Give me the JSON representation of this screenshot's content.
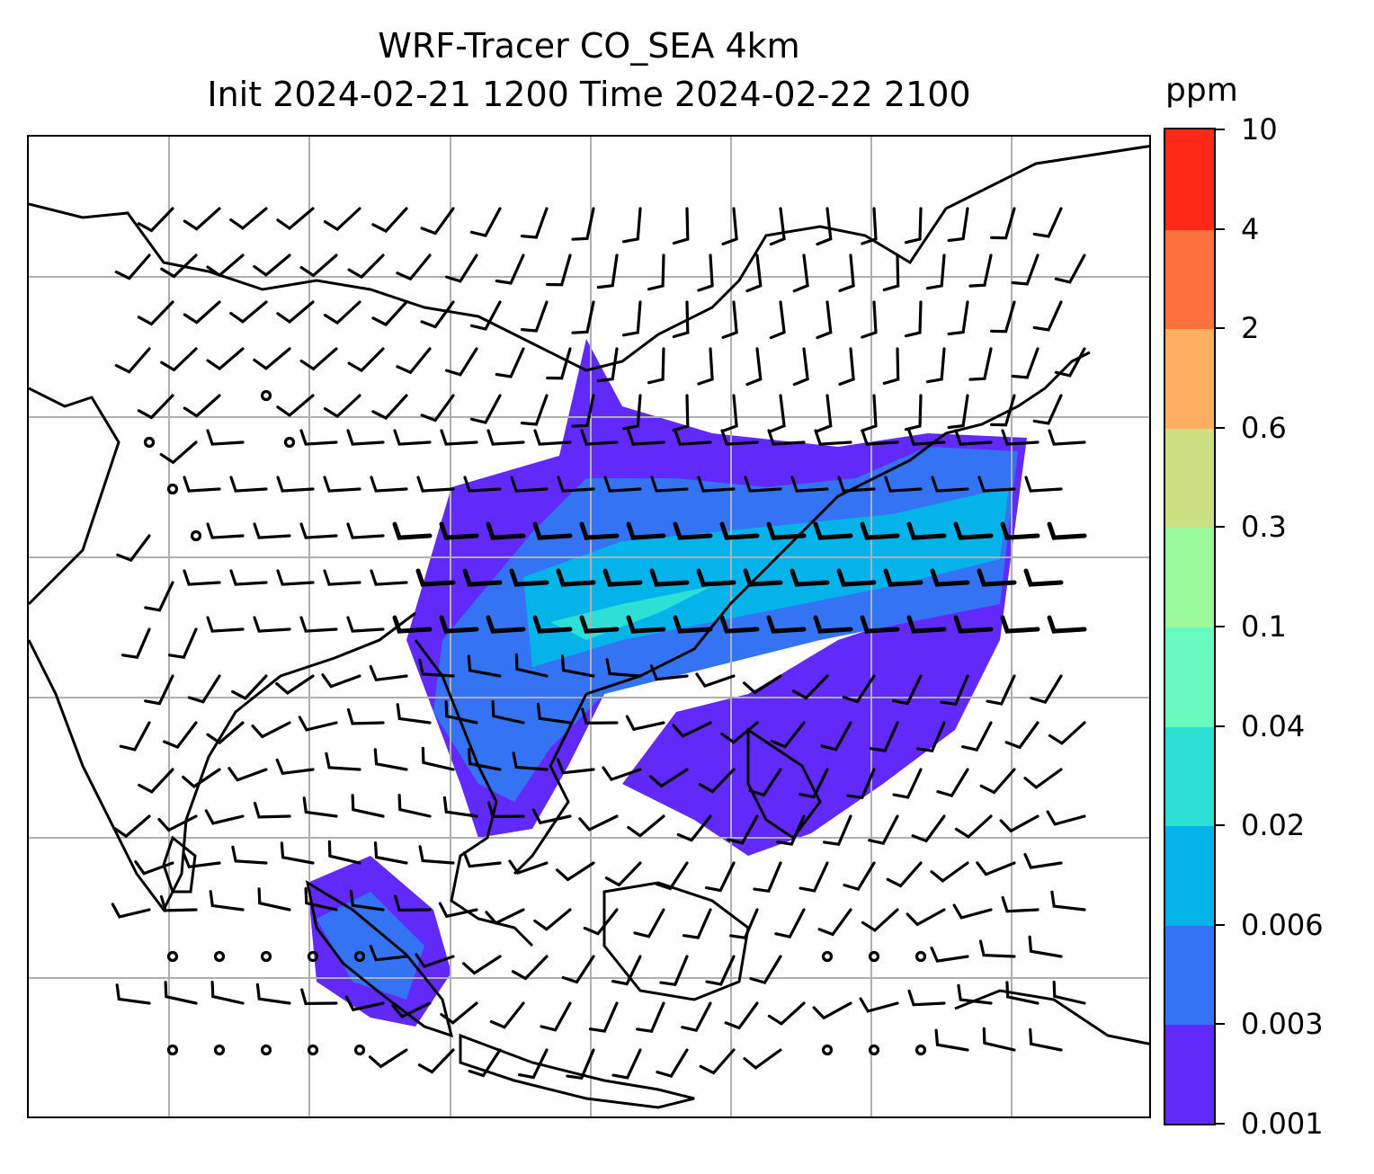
{
  "title": {
    "line1": "WRF-Tracer CO_SEA 4km",
    "line2": "Init 2024-02-21 1200 Time 2024-02-22 2100"
  },
  "colorbar": {
    "unit": "ppm",
    "levels": [
      "0.001",
      "0.003",
      "0.006",
      "0.02",
      "0.04",
      "0.1",
      "0.3",
      "0.6",
      "2",
      "4",
      "10"
    ],
    "colors": [
      "#6229fb",
      "#3474f4",
      "#04b3ea",
      "#2ddfd5",
      "#69fabf",
      "#9af99a",
      "#cde081",
      "#fdaf5f",
      "#fe713a",
      "#ff2816"
    ]
  },
  "map": {
    "gridlines": true,
    "features": [
      "coastlines",
      "country-borders",
      "wind-barbs",
      "tracer-shading"
    ]
  }
}
